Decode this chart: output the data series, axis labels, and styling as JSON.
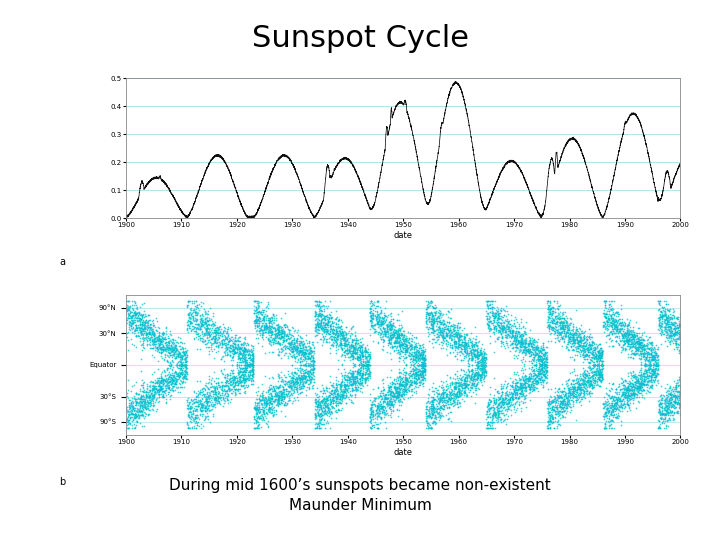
{
  "title": "Sunspot Cycle",
  "title_fontsize": 22,
  "title_font": "DejaVu Sans",
  "subtitle": "During mid 1600’s sunspots became non-existent\nMaunder Minimum",
  "subtitle_fontsize": 11,
  "background_color": "#ffffff",
  "top_chart": {
    "xlabel": "date",
    "ylabel_label": "a",
    "xlim": [
      1900,
      2000
    ],
    "ylim": [
      0.0,
      0.5
    ],
    "yticks": [
      0.0,
      0.1,
      0.2,
      0.3,
      0.4,
      0.5
    ],
    "xticks": [
      1900,
      1910,
      1920,
      1930,
      1940,
      1950,
      1960,
      1970,
      1980,
      1990,
      2000
    ],
    "grid_color": "#aaddee",
    "line_color": "#111111",
    "cycle_period": 11,
    "seed": 7
  },
  "bottom_chart": {
    "xlabel": "date",
    "ylabel_label": "b",
    "xlim": [
      1900,
      2000
    ],
    "ylim": [
      -55,
      55
    ],
    "ytick_labels": [
      "90°N",
      "30°N",
      "Equator",
      "30°S",
      "90°S"
    ],
    "ytick_vals": [
      45,
      25,
      0,
      -25,
      -45
    ],
    "xticks": [
      1900,
      1910,
      1920,
      1930,
      1940,
      1950,
      1960,
      1970,
      1980,
      1990,
      2000
    ],
    "dot_color": "#00c0d0",
    "dot_size": 1.5,
    "grid_color": "#aaddee",
    "seed": 77
  }
}
